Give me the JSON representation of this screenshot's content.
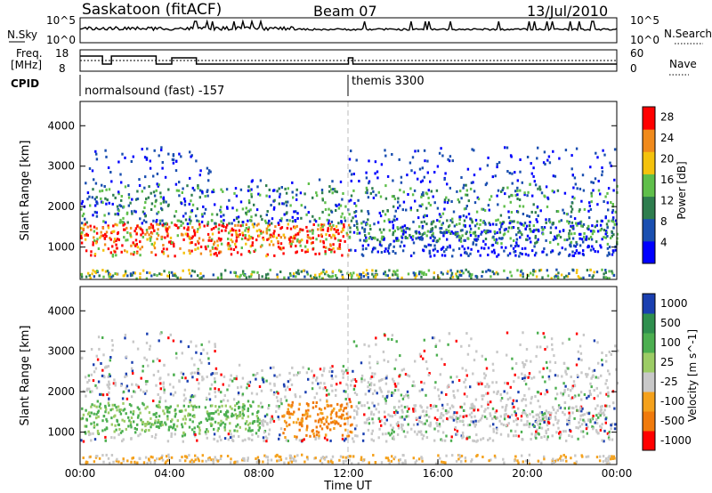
{
  "header": {
    "station": "Saskatoon (fitACF)",
    "beam": "Beam 07",
    "date": "13/Jul/2010"
  },
  "top_panels": {
    "nsky_label": "N.Sky",
    "nsearch_label": "N.Search",
    "nsky_ticks": [
      "10^5",
      "10^0"
    ],
    "nsearch_ticks": [
      "10^5",
      "10^0"
    ],
    "freq_label_1": "Freq.",
    "freq_label_2": "[MHz]",
    "freq_ticks": [
      "18",
      "8"
    ],
    "nave_label": "Nave",
    "nave_ticks": [
      "60",
      "0"
    ],
    "cpid_label": "CPID",
    "cpid_segments": [
      {
        "start_hour": 0,
        "label": "normalsound (fast) -157"
      },
      {
        "start_hour": 12,
        "label": "themis 3300"
      }
    ]
  },
  "chart_data": [
    {
      "type": "heatmap",
      "title": "",
      "xlabel": "",
      "ylabel": "Slant Range [km]",
      "xlim": [
        0,
        24
      ],
      "ylim": [
        200,
        4600
      ],
      "yticks": [
        "1000",
        "2000",
        "3000",
        "4000"
      ],
      "colorbar_label": "Power [dB]",
      "colorbar_ticks": [
        "4",
        "8",
        "12",
        "16",
        "20",
        "24",
        "28"
      ],
      "colorbar_range": [
        0,
        30
      ],
      "colors": [
        "#0000ff",
        "#1a4fb0",
        "#2e7d4e",
        "#5fbf4a",
        "#f4c20d",
        "#f08a1c",
        "#ff0000"
      ],
      "features": [
        {
          "hours": [
            0,
            12
          ],
          "range_km": [
            800,
            1600
          ],
          "level": "high"
        },
        {
          "hours": [
            0,
            24
          ],
          "range_km": [
            1200,
            2600
          ],
          "level": "moderate"
        },
        {
          "hours": [
            0,
            24
          ],
          "range_km": [
            250,
            450
          ],
          "level": "low"
        }
      ]
    },
    {
      "type": "heatmap",
      "title": "",
      "xlabel": "Time UT",
      "ylabel": "Slant Range [km]",
      "xlim": [
        0,
        24
      ],
      "ylim": [
        200,
        4600
      ],
      "xticks": [
        "00:00",
        "04:00",
        "08:00",
        "12:00",
        "16:00",
        "20:00",
        "00:00"
      ],
      "yticks": [
        "1000",
        "2000",
        "3000",
        "4000"
      ],
      "colorbar_label": "Velocity [m s^-1]",
      "colorbar_ticks": [
        "1000",
        "500",
        "100",
        "25",
        "-25",
        "-100",
        "-500",
        "-1000"
      ],
      "colors": [
        "#1a3fb0",
        "#2f8f4e",
        "#4caf50",
        "#9ccc65",
        "#c8c8c8",
        "#f4a11c",
        "#f07a0c",
        "#ff0000"
      ],
      "features": [
        {
          "hours": [
            0,
            8
          ],
          "range_km": [
            1000,
            1800
          ],
          "level": "green"
        },
        {
          "hours": [
            9,
            12
          ],
          "range_km": [
            900,
            1800
          ],
          "level": "orange"
        },
        {
          "hours": [
            0,
            24
          ],
          "range_km": [
            1000,
            2600
          ],
          "level": "grey"
        }
      ]
    }
  ]
}
